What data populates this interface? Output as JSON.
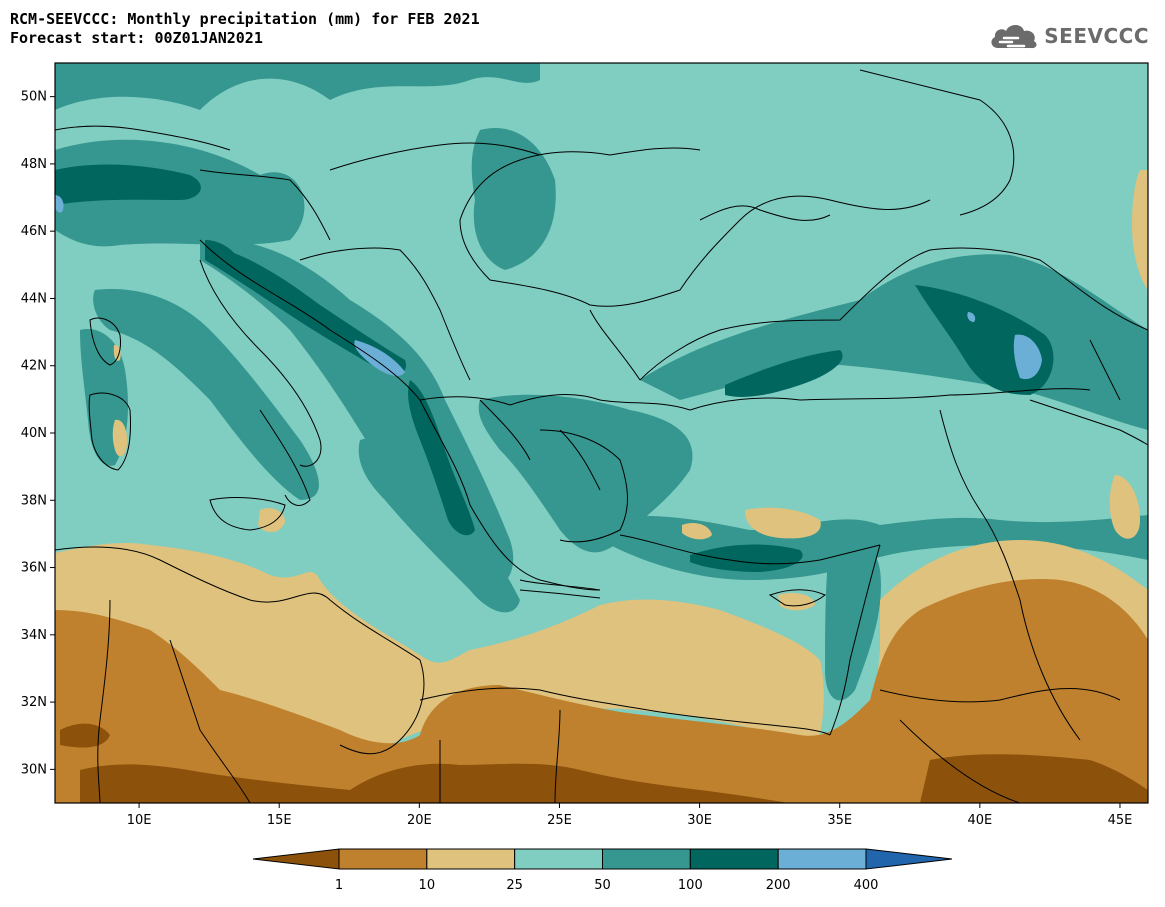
{
  "header": {
    "title": "RCM-SEEVCCC: Monthly precipitation (mm) for FEB 2021",
    "subtitle": "Forecast start: 00Z01JAN2021"
  },
  "logo": {
    "text": "SEEVCCC",
    "icon": "cloud-icon"
  },
  "map": {
    "lon_range": [
      7,
      46
    ],
    "lat_range": [
      29,
      51
    ],
    "lat_ticks": [
      {
        "value": 30,
        "label": "30N"
      },
      {
        "value": 32,
        "label": "32N"
      },
      {
        "value": 34,
        "label": "34N"
      },
      {
        "value": 36,
        "label": "36N"
      },
      {
        "value": 38,
        "label": "38N"
      },
      {
        "value": 40,
        "label": "40N"
      },
      {
        "value": 42,
        "label": "42N"
      },
      {
        "value": 44,
        "label": "44N"
      },
      {
        "value": 46,
        "label": "46N"
      },
      {
        "value": 48,
        "label": "48N"
      },
      {
        "value": 50,
        "label": "50N"
      }
    ],
    "lon_ticks": [
      {
        "value": 10,
        "label": "10E"
      },
      {
        "value": 15,
        "label": "15E"
      },
      {
        "value": 20,
        "label": "20E"
      },
      {
        "value": 25,
        "label": "25E"
      },
      {
        "value": 30,
        "label": "30E"
      },
      {
        "value": 35,
        "label": "35E"
      },
      {
        "value": 40,
        "label": "40E"
      },
      {
        "value": 45,
        "label": "45E"
      }
    ]
  },
  "colorbar": {
    "boundaries": [
      "1",
      "10",
      "25",
      "50",
      "100",
      "200",
      "400"
    ],
    "colors": [
      "#8c510a",
      "#bf812d",
      "#dfc27d",
      "#80cdc1",
      "#35978f",
      "#01665e",
      "#6baed6",
      "#2166ac"
    ]
  }
}
